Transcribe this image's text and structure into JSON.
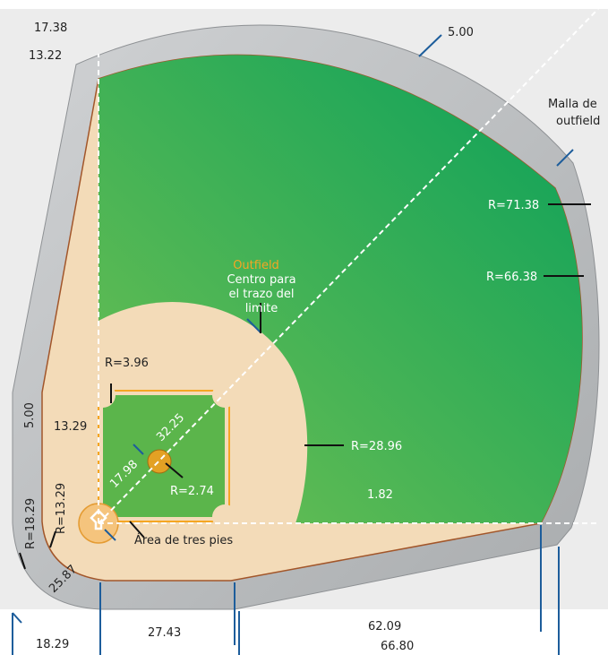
{
  "colors": {
    "background": "#ececec",
    "fence": "#b9bcbe",
    "fence_edge": "#8e9194",
    "clay": "#f3dbb8",
    "grass_light": "#72c152",
    "grass_dark": "#0aa05a",
    "infield_grass": "#5bb54b",
    "outline_orange": "#f5a623",
    "rim_brown": "#a2562a",
    "leader_blue": "#1d5d9b"
  },
  "labels": {
    "outfield_title": "Outfield",
    "outfield_center_1": "Centro para",
    "outfield_center_2": "el trazo del",
    "outfield_center_3": "limite",
    "fence_1": "Malla de",
    "fence_2": "outfield",
    "three_foot_area": "Área de tres pies"
  },
  "dimensions": {
    "d_17_38": "17.38",
    "d_13_22": "13.22",
    "d_5_00_top": "5.00",
    "r_71_38": "R=71.38",
    "r_66_38": "R=66.38",
    "r_3_96": "R=3.96",
    "r_28_96": "R=28.96",
    "r_2_74": "R=2.74",
    "d_13_29_a": "13.29",
    "d_5_00_left": "5.00",
    "r_18_29": "R=18.29",
    "r_13_29": "R=13.29",
    "d_32_25": "32.25",
    "d_17_98": "17.98",
    "d_1_82": "1.82",
    "d_25_87": "25.87",
    "d_27_43": "27.43",
    "d_62_09": "62.09",
    "d_66_80": "66.80",
    "d_18_29": "18.29"
  }
}
